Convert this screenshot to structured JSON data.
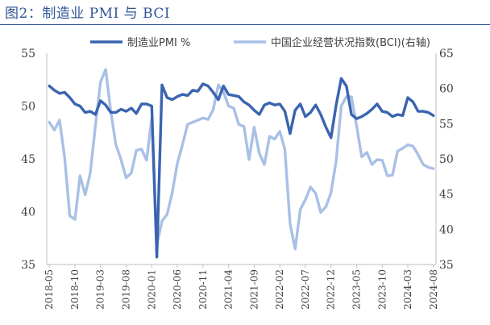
{
  "figure": {
    "title": "图2：制造业 PMI 与 BCI"
  },
  "colors": {
    "title": "#2e5597",
    "pmi": "#3a64b0",
    "bci": "#a9c0e6",
    "axis": "#404040"
  },
  "chart_data": {
    "type": "line",
    "title": "",
    "xlabel": "",
    "ylabel": "",
    "x_tick_labels": [
      "2018-05",
      "2018-10",
      "2019-03",
      "2019-08",
      "2020-01",
      "2020-06",
      "2020-11",
      "2021-04",
      "2021-09",
      "2022-02",
      "2022-07",
      "2022-12",
      "2023-05",
      "2023-10",
      "2024-03",
      "2024-08"
    ],
    "ylim_left": [
      35,
      55
    ],
    "yticks_left": [
      35,
      40,
      45,
      50,
      55
    ],
    "ylim_right": [
      35,
      65
    ],
    "yticks_right": [
      35,
      40,
      45,
      50,
      55,
      60,
      65
    ],
    "grid": false,
    "legend_position": "top",
    "x": [
      "2018-05",
      "2018-06",
      "2018-07",
      "2018-08",
      "2018-09",
      "2018-10",
      "2018-11",
      "2018-12",
      "2019-01",
      "2019-02",
      "2019-03",
      "2019-04",
      "2019-05",
      "2019-06",
      "2019-07",
      "2019-08",
      "2019-09",
      "2019-10",
      "2019-11",
      "2019-12",
      "2020-01",
      "2020-02",
      "2020-03",
      "2020-04",
      "2020-05",
      "2020-06",
      "2020-07",
      "2020-08",
      "2020-09",
      "2020-10",
      "2020-11",
      "2020-12",
      "2021-01",
      "2021-02",
      "2021-03",
      "2021-04",
      "2021-05",
      "2021-06",
      "2021-07",
      "2021-08",
      "2021-09",
      "2021-10",
      "2021-11",
      "2021-12",
      "2022-01",
      "2022-02",
      "2022-03",
      "2022-04",
      "2022-05",
      "2022-06",
      "2022-07",
      "2022-08",
      "2022-09",
      "2022-10",
      "2022-11",
      "2022-12",
      "2023-01",
      "2023-02",
      "2023-03",
      "2023-04",
      "2023-05",
      "2023-06",
      "2023-07",
      "2023-08",
      "2023-09",
      "2023-10",
      "2023-11",
      "2023-12",
      "2024-01",
      "2024-02",
      "2024-03",
      "2024-04",
      "2024-05",
      "2024-06",
      "2024-07",
      "2024-08"
    ],
    "series": [
      {
        "name": "制造业PMI %",
        "axis": "left",
        "values": [
          51.9,
          51.5,
          51.2,
          51.3,
          50.8,
          50.2,
          50.0,
          49.4,
          49.5,
          49.2,
          50.5,
          50.1,
          49.4,
          49.4,
          49.7,
          49.5,
          49.8,
          49.3,
          50.2,
          50.2,
          50.0,
          35.7,
          52.0,
          50.8,
          50.6,
          50.9,
          51.1,
          51.0,
          51.5,
          51.4,
          52.1,
          51.9,
          51.3,
          50.6,
          51.9,
          51.1,
          51.0,
          50.9,
          50.4,
          50.1,
          49.6,
          49.2,
          50.1,
          50.3,
          50.1,
          50.2,
          49.5,
          47.4,
          49.6,
          50.2,
          49.0,
          49.4,
          50.1,
          49.2,
          48.0,
          47.0,
          50.1,
          52.6,
          51.9,
          49.2,
          48.8,
          49.0,
          49.3,
          49.7,
          50.2,
          49.5,
          49.4,
          49.0,
          49.2,
          49.1,
          50.8,
          50.4,
          49.5,
          49.5,
          49.4,
          49.1
        ]
      },
      {
        "name": "中国企业经营状况指数(BCI)(右轴)",
        "axis": "right",
        "values": [
          55.2,
          54.1,
          55.5,
          50.2,
          41.9,
          41.4,
          47.6,
          44.9,
          48.0,
          54.7,
          60.9,
          62.7,
          56.8,
          52.0,
          49.9,
          47.3,
          48.0,
          51.2,
          51.4,
          49.8,
          55.8,
          37.7,
          41.2,
          42.1,
          45.2,
          49.4,
          52.0,
          54.9,
          55.2,
          55.5,
          55.8,
          55.6,
          57.0,
          60.5,
          59.5,
          57.5,
          57.2,
          54.9,
          54.6,
          49.9,
          54.5,
          50.8,
          49.2,
          53.2,
          52.8,
          53.9,
          51.3,
          40.8,
          37.2,
          42.8,
          44.2,
          46.0,
          45.1,
          42.4,
          43.2,
          45.2,
          49.7,
          57.5,
          58.8,
          58.8,
          54.7,
          50.3,
          50.9,
          49.2,
          49.9,
          49.8,
          47.6,
          47.7,
          51.1,
          51.5,
          52.0,
          51.8,
          50.6,
          49.2,
          48.8,
          48.6
        ]
      }
    ]
  }
}
